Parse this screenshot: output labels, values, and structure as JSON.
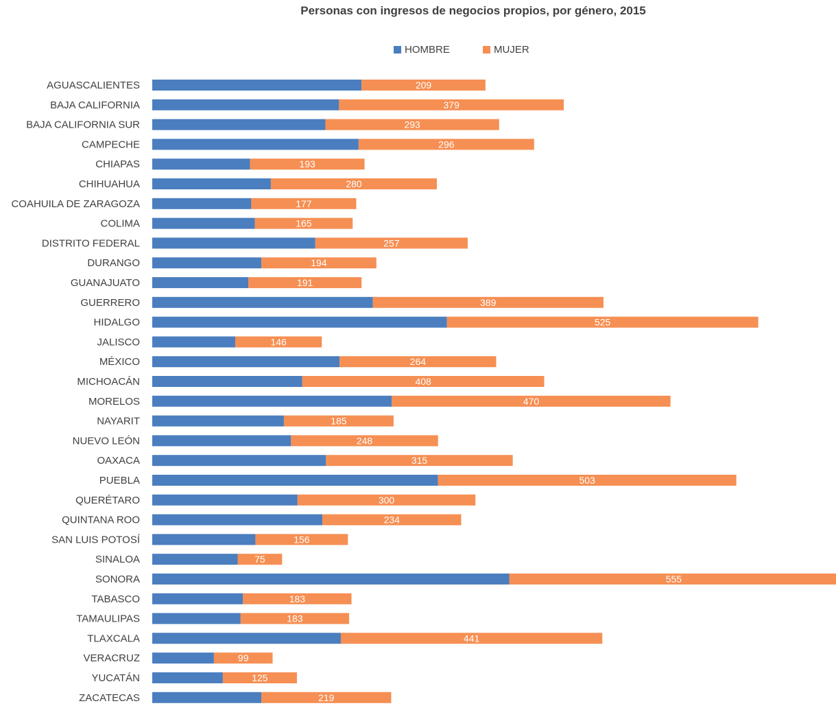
{
  "chart_data": {
    "type": "bar",
    "orientation": "horizontal",
    "stacked": true,
    "title": "Personas con ingresos de negocios propios, por género, 2015",
    "legend_position": "top",
    "categories": [
      "AGUASCALIENTES",
      "BAJA CALIFORNIA",
      "BAJA CALIFORNIA SUR",
      "CAMPECHE",
      "CHIAPAS",
      "CHIHUAHUA",
      "COAHUILA DE ZARAGOZA",
      "COLIMA",
      "DISTRITO FEDERAL",
      "DURANGO",
      "GUANAJUATO",
      "GUERRERO",
      "HIDALGO",
      "JALISCO",
      "MÉXICO",
      "MICHOACÁN",
      "MORELOS",
      "NAYARIT",
      "NUEVO LEÓN",
      "OAXACA",
      "PUEBLA",
      "QUERÉTARO",
      "QUINTANA ROO",
      "SAN LUIS POTOSÍ",
      "SINALOA",
      "SONORA",
      "TABASCO",
      "TAMAULIPAS",
      "TLAXCALA",
      "VERACRUZ",
      "YUCATÁN",
      "ZACATECAS"
    ],
    "series": [
      {
        "name": "HOMBRE",
        "color": "#4a7ebf",
        "show_labels": false,
        "values": [
          353,
          315,
          292,
          348,
          165,
          200,
          167,
          173,
          275,
          184,
          162,
          372,
          497,
          140,
          316,
          253,
          404,
          222,
          234,
          293,
          482,
          245,
          287,
          174,
          144,
          602,
          153,
          149,
          318,
          104,
          119,
          184
        ]
      },
      {
        "name": "MUJER",
        "color": "#f68f53",
        "show_labels": true,
        "values": [
          209,
          379,
          293,
          296,
          193,
          280,
          177,
          165,
          257,
          194,
          191,
          389,
          525,
          146,
          264,
          408,
          470,
          185,
          248,
          315,
          503,
          300,
          234,
          156,
          75,
          555,
          183,
          183,
          441,
          99,
          125,
          219
        ]
      }
    ],
    "grid": false,
    "x_axis_visible": false
  }
}
